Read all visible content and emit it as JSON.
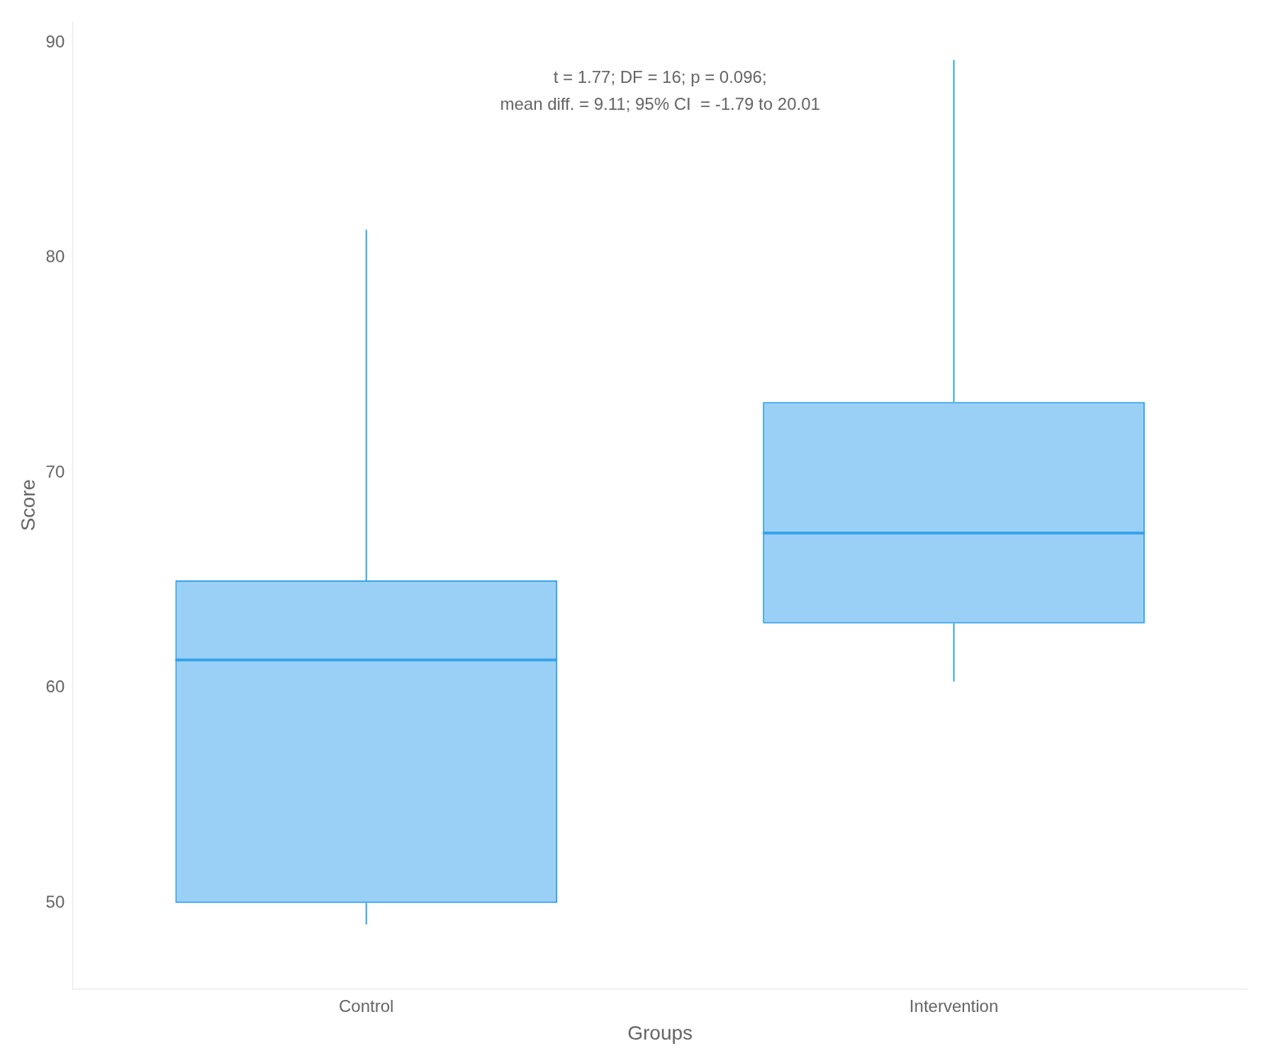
{
  "chart_data": {
    "type": "box",
    "xlabel": "Groups",
    "ylabel": "Score",
    "annotations": [
      "t = 1.77; DF = 16; p = 0.096;",
      "mean diff. = 9.11; 95% CI  = -1.79 to 20.01"
    ],
    "categories": [
      "Control",
      "Intervention"
    ],
    "values": [
      {
        "whislo": 49.0,
        "q1": 50.0,
        "med": 61.3,
        "q3": 65.0,
        "whishi": 81.3
      },
      {
        "whislo": 60.3,
        "q1": 63.0,
        "med": 67.2,
        "q3": 73.3,
        "whishi": 89.2
      }
    ],
    "ylim": [
      46,
      91
    ],
    "yticks": [
      50,
      60,
      70,
      80,
      90
    ],
    "grid": false
  }
}
